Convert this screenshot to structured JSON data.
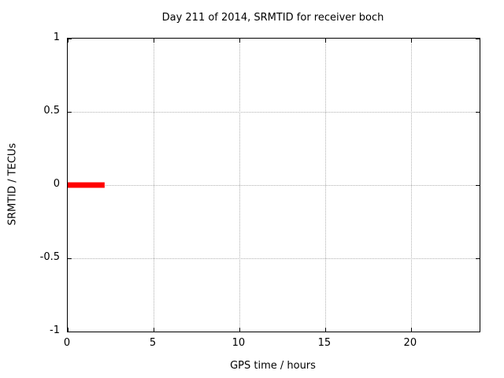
{
  "chart_data": {
    "type": "line",
    "title": "Day 211 of 2014, SRMTID for receiver boch",
    "xlabel": "GPS time / hours",
    "ylabel": "SRMTID / TECUs",
    "xlim": [
      0,
      24
    ],
    "ylim": [
      -1,
      1
    ],
    "xticks": [
      0,
      5,
      10,
      15,
      20
    ],
    "yticks": [
      -1,
      -0.5,
      0,
      0.5,
      1
    ],
    "grid": true,
    "grid_color": "#b0b0b0",
    "border_color": "#000000",
    "series": [
      {
        "name": "SRMTID",
        "color": "#ff0000",
        "linewidth": 7,
        "x": [
          0,
          2.15
        ],
        "y": [
          0,
          0
        ]
      }
    ]
  }
}
